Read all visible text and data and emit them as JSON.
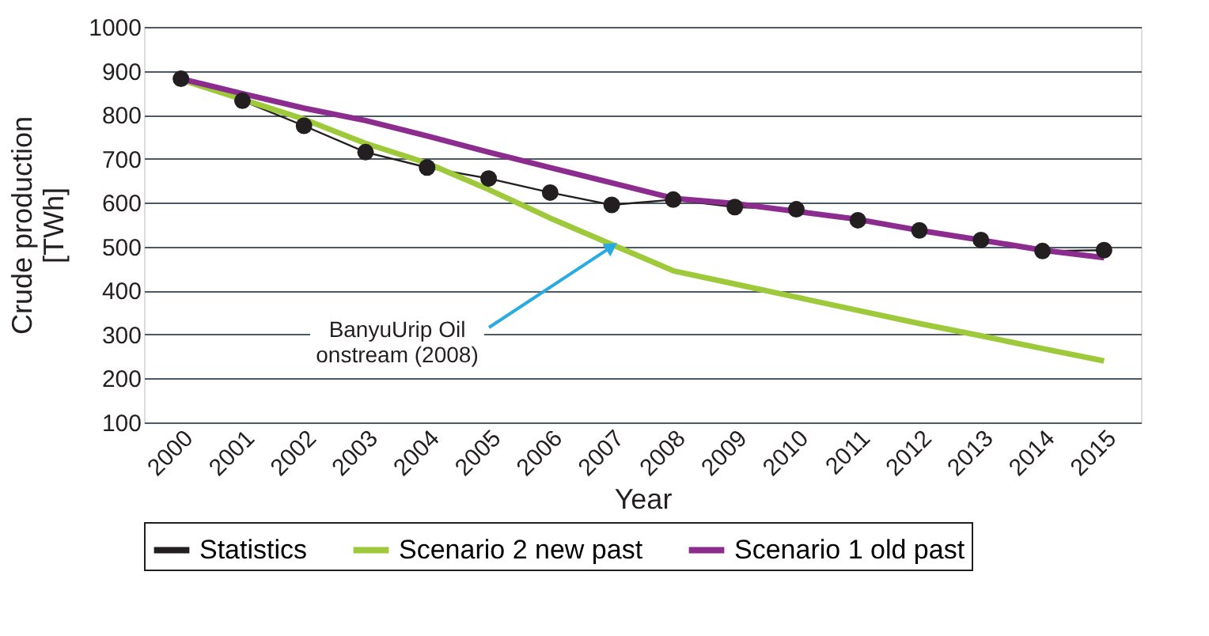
{
  "chart_data": {
    "type": "line",
    "xlabel": "Year",
    "ylabel": "Crude production [TWh]",
    "categories": [
      "2000",
      "2001",
      "2002",
      "2003",
      "2004",
      "2005",
      "2006",
      "2007",
      "2008",
      "2009",
      "2010",
      "2011",
      "2012",
      "2013",
      "2014",
      "2015"
    ],
    "series": [
      {
        "name": "Statistics",
        "color": "#231f20",
        "marker": "circle",
        "values": [
          882,
          832,
          775,
          715,
          680,
          655,
          623,
          595,
          607,
          590,
          585,
          560,
          537,
          515,
          490,
          492
        ]
      },
      {
        "name": "Scenario 2 new past",
        "color": "#9dc93b",
        "values": [
          880,
          835,
          790,
          735,
          690,
          630,
          565,
          505,
          445,
          415,
          385,
          355,
          325,
          297,
          268,
          240
        ]
      },
      {
        "name": "Scenario 1 old past",
        "color": "#8b2c8e",
        "values": [
          882,
          848,
          815,
          787,
          752,
          715,
          680,
          645,
          610,
          598,
          580,
          562,
          537,
          515,
          492,
          475
        ]
      }
    ],
    "ylim": [
      100,
      1000
    ],
    "yticks": [
      100,
      200,
      300,
      400,
      500,
      600,
      700,
      800,
      900,
      1000
    ],
    "grid": "y",
    "legend": "bottom",
    "annotations": [
      {
        "text": "BanyuUrip Oil\nonstream (2008)",
        "x": "2007",
        "y": 500
      }
    ]
  }
}
